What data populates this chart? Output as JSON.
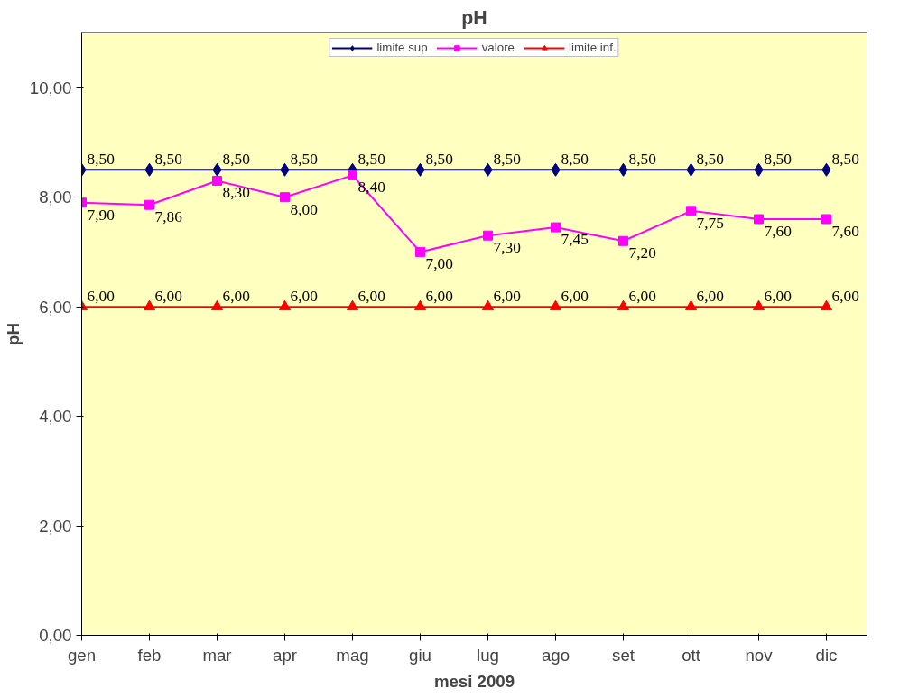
{
  "chart_data": {
    "type": "line",
    "title": "pH",
    "xlabel": "mesi 2009",
    "ylabel": "pH",
    "categories": [
      "gen",
      "feb",
      "mar",
      "apr",
      "mag",
      "giu",
      "lug",
      "ago",
      "set",
      "ott",
      "nov",
      "dic"
    ],
    "series": [
      {
        "name": "limite sup",
        "color": "#000080",
        "marker": "diamond",
        "values": [
          8.5,
          8.5,
          8.5,
          8.5,
          8.5,
          8.5,
          8.5,
          8.5,
          8.5,
          8.5,
          8.5,
          8.5
        ],
        "value_labels": [
          "8,50",
          "8,50",
          "8,50",
          "8,50",
          "8,50",
          "8,50",
          "8,50",
          "8,50",
          "8,50",
          "8,50",
          "8,50",
          "8,50"
        ]
      },
      {
        "name": "valore",
        "color": "#ff00ff",
        "marker": "square",
        "values": [
          7.9,
          7.86,
          8.3,
          8.0,
          8.4,
          7.0,
          7.3,
          7.45,
          7.2,
          7.75,
          7.6,
          7.6
        ],
        "value_labels": [
          "7,90",
          "7,86",
          "8,30",
          "8,00",
          "8,40",
          "7,00",
          "7,30",
          "7,45",
          "7,20",
          "7,75",
          "7,60",
          "7,60"
        ]
      },
      {
        "name": "limite inf.",
        "color": "#ff0000",
        "marker": "triangle",
        "values": [
          6.0,
          6.0,
          6.0,
          6.0,
          6.0,
          6.0,
          6.0,
          6.0,
          6.0,
          6.0,
          6.0,
          6.0
        ],
        "value_labels": [
          "6,00",
          "6,00",
          "6,00",
          "6,00",
          "6,00",
          "6,00",
          "6,00",
          "6,00",
          "6,00",
          "6,00",
          "6,00",
          "6,00"
        ]
      }
    ],
    "ylim": [
      0,
      11
    ],
    "yticks": [
      {
        "value": 0,
        "label": "0,00"
      },
      {
        "value": 2,
        "label": "2,00"
      },
      {
        "value": 4,
        "label": "4,00"
      },
      {
        "value": 6,
        "label": "6,00"
      },
      {
        "value": 8,
        "label": "8,00"
      },
      {
        "value": 10,
        "label": "10,00"
      }
    ],
    "grid": false,
    "legend": "top",
    "line_style": "solid"
  }
}
